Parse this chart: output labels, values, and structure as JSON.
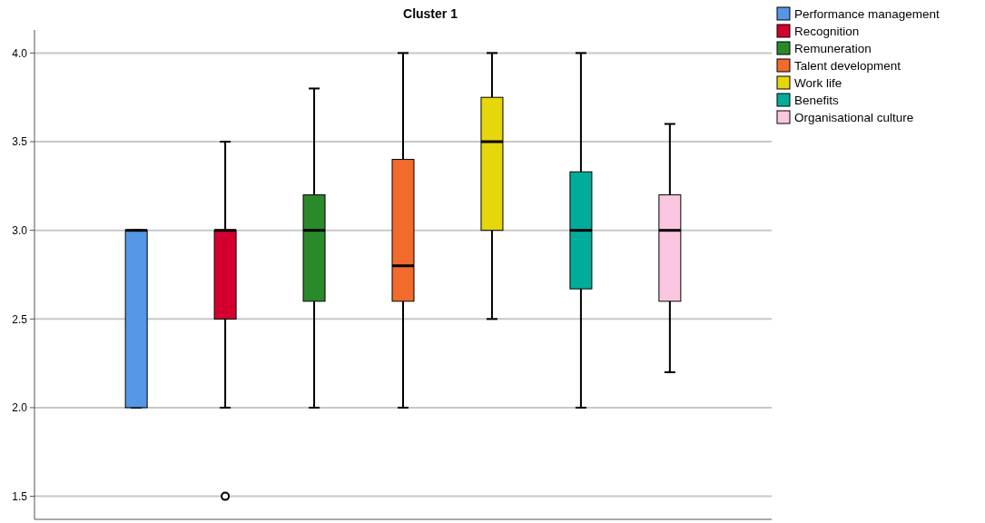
{
  "chart_data": {
    "type": "box",
    "title": "Cluster 1",
    "categories": [
      null
    ],
    "ylim": [
      1.37,
      4.13
    ],
    "yticks": [
      {
        "value": 1.5,
        "label": "1.5"
      },
      {
        "value": 2,
        "label": "2.0"
      },
      {
        "value": 2.5,
        "label": "2.5"
      },
      {
        "value": 3,
        "label": "3.0"
      },
      {
        "value": 3.5,
        "label": "3.5"
      },
      {
        "value": 4,
        "label": "4.0"
      }
    ],
    "grid": "y",
    "legend": "top right",
    "tick_labels": "y",
    "series": [
      {
        "name": "Performance management",
        "color": "#5596e6",
        "boxes": [
          {
            "low": 2,
            "q1": 2,
            "median": 3,
            "q3": 3,
            "high": 3
          }
        ]
      },
      {
        "name": "Recognition",
        "color": "#d3002f",
        "boxes": [
          {
            "low": 2,
            "q1": 2.5,
            "median": 3,
            "q3": 3,
            "high": 3.5,
            "outliers": [
              1.5
            ]
          }
        ]
      },
      {
        "name": "Remuneration",
        "color": "#2a8a2a",
        "boxes": [
          {
            "low": 2,
            "q1": 2.6,
            "median": 3,
            "q3": 3.2,
            "high": 3.8
          }
        ]
      },
      {
        "name": "Talent development",
        "color": "#f26a2c",
        "boxes": [
          {
            "low": 2,
            "q1": 2.6,
            "median": 2.8,
            "q3": 3.4,
            "high": 4
          }
        ]
      },
      {
        "name": "Work life",
        "color": "#e6d60c",
        "boxes": [
          {
            "low": 2.5,
            "q1": 3,
            "median": 3.5,
            "q3": 3.75,
            "high": 4
          }
        ]
      },
      {
        "name": "Benefits",
        "color": "#00ad9a",
        "boxes": [
          {
            "low": 2,
            "q1": 2.67,
            "median": 3,
            "q3": 3.33,
            "high": 4
          }
        ]
      },
      {
        "name": "Organisational culture",
        "color": "#fbc6e0",
        "boxes": [
          {
            "low": 2.2,
            "q1": 2.6,
            "median": 3,
            "q3": 3.2,
            "high": 3.6
          }
        ]
      }
    ]
  }
}
